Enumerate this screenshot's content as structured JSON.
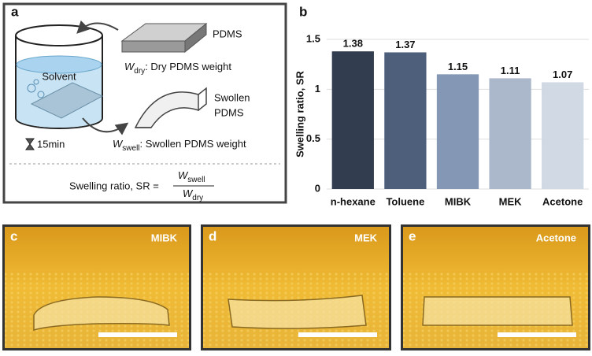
{
  "panel_a": {
    "label": "a",
    "pdms": "PDMS",
    "dry": {
      "symbol": "W",
      "subscript": "dry",
      "desc": ": Dry PDMS weight"
    },
    "solvent": "Solvent",
    "swollen": [
      "Swollen",
      "PDMS"
    ],
    "time": "15min",
    "swell": {
      "symbol": "W",
      "subscript": "swell",
      "desc": ": Swollen PDMS weight"
    },
    "formula": "Swelling ratio, SR ="
  },
  "chart_data": {
    "type": "bar",
    "panel_label": "b",
    "y_label": "Swelling ratio, SR",
    "categories": [
      "n-hexane",
      "Toluene",
      "MIBK",
      "MEK",
      "Acetone"
    ],
    "values": [
      1.38,
      1.37,
      1.15,
      1.11,
      1.07
    ],
    "colors": [
      "#323e50",
      "#4d5f7b",
      "#8497b4",
      "#abb8cc",
      "#d1d9e5"
    ],
    "ylim": [
      0,
      1.5
    ],
    "yticks": [
      0,
      0.5,
      1,
      1.5
    ],
    "grid": true
  },
  "photos": [
    {
      "label": "c",
      "solvent": "MIBK"
    },
    {
      "label": "d",
      "solvent": "MEK"
    },
    {
      "label": "e",
      "solvent": "Acetone"
    }
  ]
}
